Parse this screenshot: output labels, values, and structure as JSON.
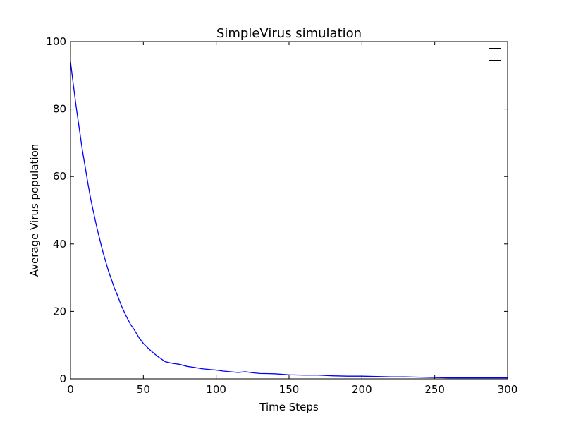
{
  "chart_data": {
    "type": "line",
    "title": "SimpleVirus simulation",
    "xlabel": "Time Steps",
    "ylabel": "Average Virus population",
    "xlim": [
      0,
      300
    ],
    "ylim": [
      0,
      100
    ],
    "xticks": [
      "0",
      "50",
      "100",
      "150",
      "200",
      "250",
      "300"
    ],
    "yticks": [
      "0",
      "20",
      "40",
      "60",
      "80",
      "100"
    ],
    "grid": false,
    "legend": {
      "placement": "top-right",
      "entries": [
        ""
      ]
    },
    "series": [
      {
        "color": "#0000ff",
        "x": [
          0,
          2,
          4,
          6,
          8,
          10,
          12,
          14,
          16,
          18,
          20,
          22,
          24,
          26,
          28,
          30,
          32,
          35,
          38,
          41,
          44,
          47,
          50,
          55,
          60,
          65,
          70,
          75,
          80,
          85,
          90,
          95,
          100,
          105,
          110,
          115,
          120,
          125,
          130,
          140,
          150,
          160,
          170,
          180,
          190,
          200,
          210,
          220,
          230,
          240,
          250,
          260,
          270,
          280,
          290,
          300
        ],
        "y": [
          94,
          87,
          80.3,
          74.3,
          68.2,
          63,
          57.8,
          53,
          49,
          45,
          41.5,
          38,
          35,
          32,
          29.6,
          27,
          25,
          21.6,
          18.8,
          16.3,
          14.4,
          12.2,
          10.5,
          8.4,
          6.6,
          5.1,
          4.6,
          4.3,
          3.7,
          3.4,
          3,
          2.8,
          2.6,
          2.3,
          2.1,
          1.9,
          2.1,
          1.8,
          1.6,
          1.5,
          1.2,
          1.1,
          1.1,
          0.9,
          0.8,
          0.8,
          0.7,
          0.6,
          0.6,
          0.5,
          0.4,
          0.3,
          0.3,
          0.3,
          0.3,
          0.3
        ]
      }
    ]
  }
}
